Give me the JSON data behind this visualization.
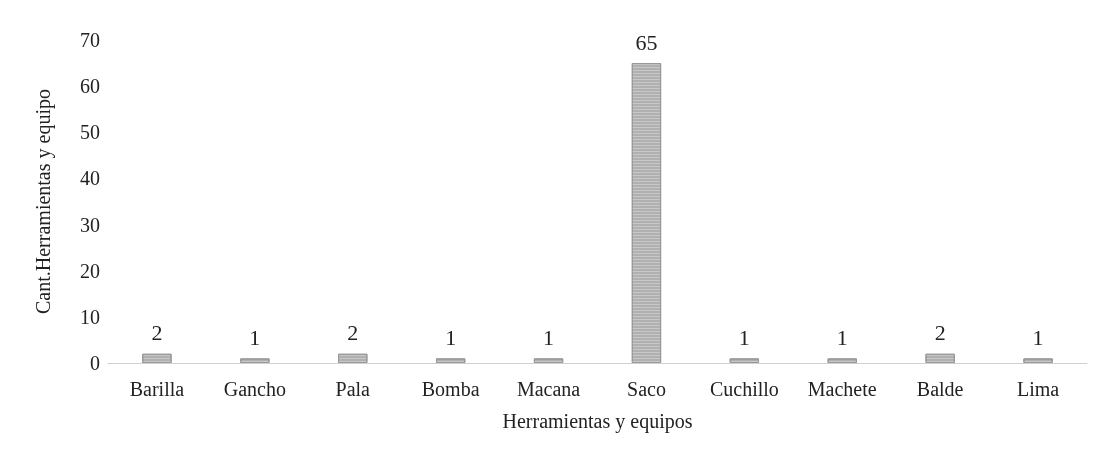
{
  "chart_data": {
    "type": "bar",
    "xlabel": "Herramientas y equipos",
    "ylabel": "Cant.Herramientas y equipo",
    "categories": [
      "Barilla",
      "Gancho",
      "Pala",
      "Bomba",
      "Macana",
      "Saco",
      "Cuchillo",
      "Machete",
      "Balde",
      "Lima"
    ],
    "values": [
      2,
      1,
      2,
      1,
      1,
      65,
      1,
      1,
      2,
      1
    ],
    "color": "#c8c8c8",
    "ylim": [
      0,
      70
    ],
    "yticks": [
      0,
      10,
      20,
      30,
      40,
      50,
      60,
      70
    ],
    "grid": false,
    "data_labels": true
  }
}
